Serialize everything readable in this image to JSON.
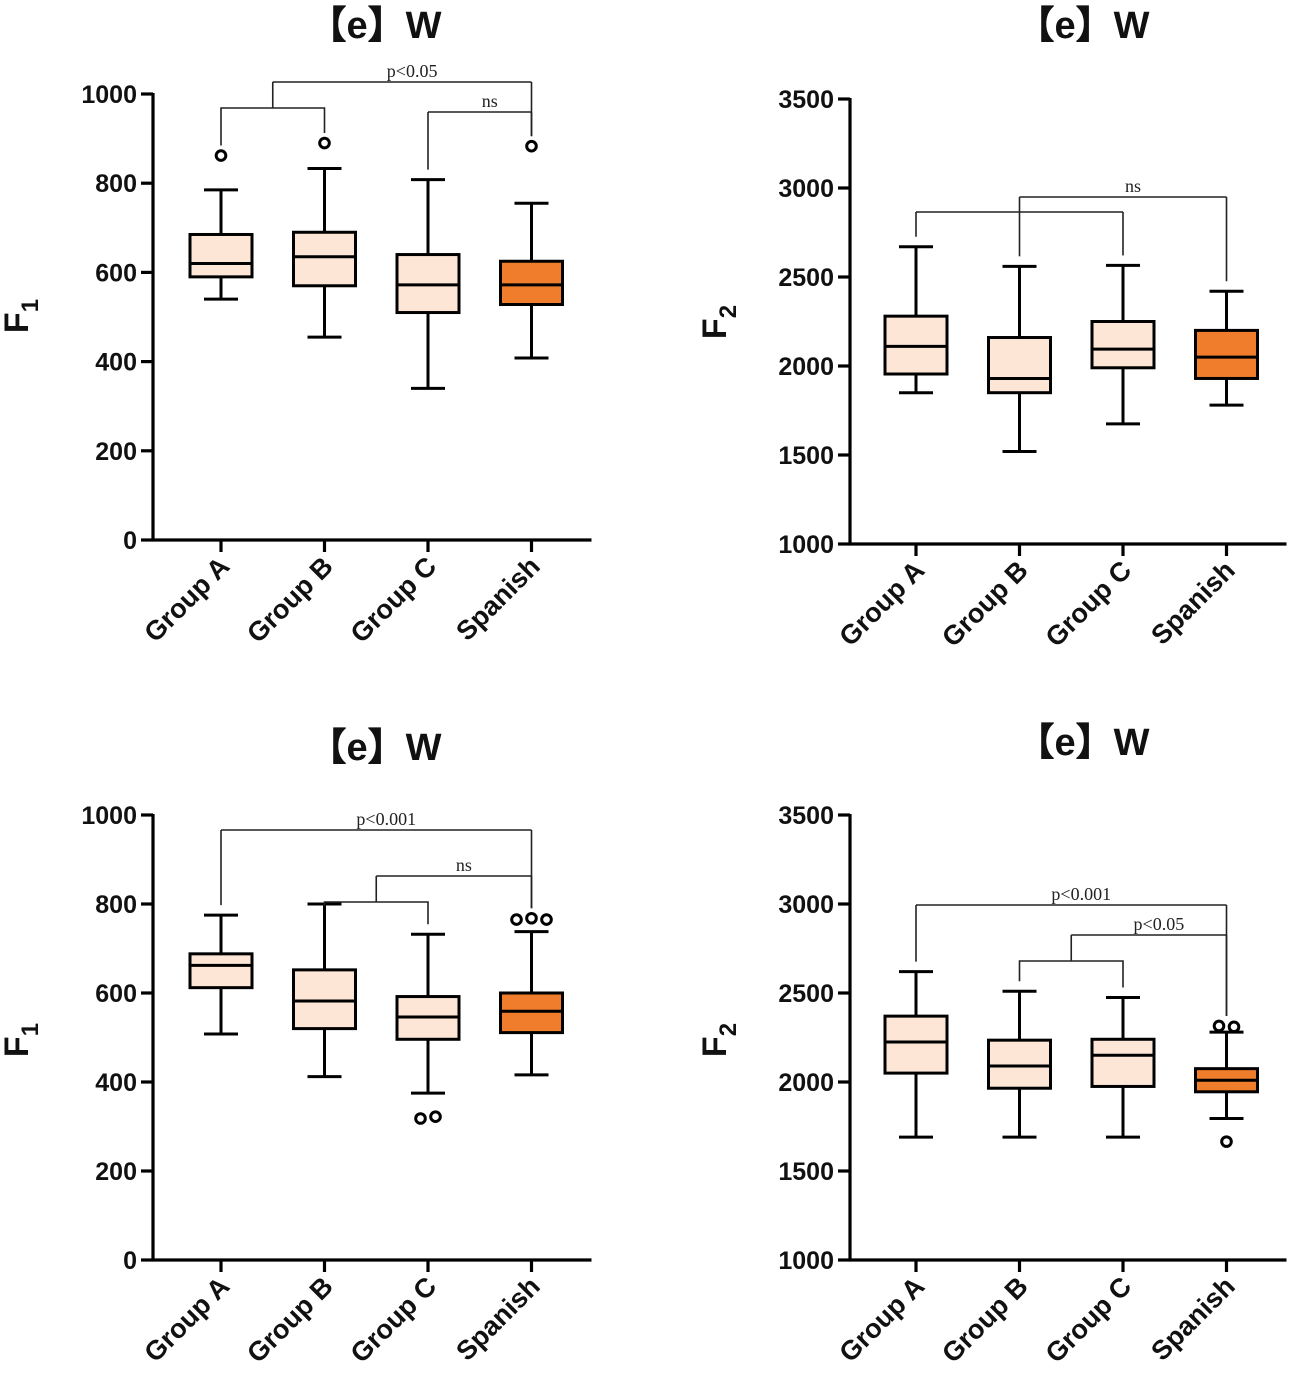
{
  "colors": {
    "light_box": "#fde6d6",
    "dark_box": "#f07d2c",
    "axis": "#000000"
  },
  "chart_data": [
    {
      "type": "box",
      "title": "【e】W",
      "ylabel": "F",
      "ylabel_sub": "1",
      "ylim": [
        0,
        1000
      ],
      "yticks": [
        "0",
        "200",
        "400",
        "600",
        "800",
        "1000"
      ],
      "categories": [
        "Group A",
        "Group B",
        "Group C",
        "Spanish"
      ],
      "boxes": [
        {
          "name": "Group A",
          "min": 540,
          "q1": 590,
          "median": 620,
          "q3": 685,
          "max": 785,
          "outliers": [
            862
          ]
        },
        {
          "name": "Group B",
          "min": 455,
          "q1": 570,
          "median": 635,
          "q3": 690,
          "max": 833,
          "outliers": [
            890
          ]
        },
        {
          "name": "Group C",
          "min": 340,
          "q1": 510,
          "median": 572,
          "q3": 640,
          "max": 808,
          "outliers": []
        },
        {
          "name": "Spanish",
          "min": 408,
          "q1": 528,
          "median": 572,
          "q3": 625,
          "max": 755,
          "outliers": [
            883
          ]
        }
      ],
      "brackets": [
        {
          "label": "p<0.05",
          "kind": "grouped",
          "left": [
            0,
            1
          ],
          "right": 3,
          "level": 0
        },
        {
          "label": "ns",
          "kind": "simple",
          "left": 2,
          "right": 3,
          "level": 1
        }
      ]
    },
    {
      "type": "box",
      "title": "【e】W",
      "ylabel": "F",
      "ylabel_sub": "2",
      "ylim": [
        1000,
        3500
      ],
      "yticks": [
        "1000",
        "1500",
        "2000",
        "2500",
        "3000",
        "3500"
      ],
      "categories": [
        "Group A",
        "Group B",
        "Group C",
        "Spanish"
      ],
      "boxes": [
        {
          "name": "Group A",
          "min": 1850,
          "q1": 1955,
          "median": 2110,
          "q3": 2280,
          "max": 2670,
          "outliers": []
        },
        {
          "name": "Group B",
          "min": 1520,
          "q1": 1850,
          "median": 1930,
          "q3": 2160,
          "max": 2560,
          "outliers": []
        },
        {
          "name": "Group C",
          "min": 1675,
          "q1": 1990,
          "median": 2095,
          "q3": 2250,
          "max": 2565,
          "outliers": []
        },
        {
          "name": "Spanish",
          "min": 1780,
          "q1": 1930,
          "median": 2050,
          "q3": 2200,
          "max": 2420,
          "outliers": []
        }
      ],
      "brackets": [
        {
          "label": "",
          "kind": "simple",
          "left": 0,
          "right": 2,
          "level": 1
        },
        {
          "label": "ns",
          "kind": "simple",
          "left": 1,
          "right": 3,
          "level": 0
        }
      ]
    },
    {
      "type": "box",
      "title": "【e】W",
      "ylabel": "F",
      "ylabel_sub": "1",
      "ylim": [
        0,
        1000
      ],
      "yticks": [
        "0",
        "200",
        "400",
        "600",
        "800",
        "1000"
      ],
      "categories": [
        "Group A",
        "Group B",
        "Group C",
        "Spanish"
      ],
      "boxes": [
        {
          "name": "Group A",
          "min": 508,
          "q1": 612,
          "median": 662,
          "q3": 688,
          "max": 775,
          "outliers": []
        },
        {
          "name": "Group B",
          "min": 412,
          "q1": 520,
          "median": 582,
          "q3": 652,
          "max": 800,
          "outliers": []
        },
        {
          "name": "Group C",
          "min": 375,
          "q1": 496,
          "median": 546,
          "q3": 592,
          "max": 732,
          "outliers": [
            318,
            322
          ]
        },
        {
          "name": "Spanish",
          "min": 416,
          "q1": 511,
          "median": 559,
          "q3": 600,
          "max": 738,
          "outliers": [
            765,
            768,
            765
          ]
        }
      ],
      "brackets": [
        {
          "label": "p<0.001",
          "kind": "simple",
          "left": 0,
          "right": 3,
          "level": 0
        },
        {
          "label": "ns",
          "kind": "grouped",
          "left": [
            1,
            2
          ],
          "right": 3,
          "level": 1
        }
      ]
    },
    {
      "type": "box",
      "title": "【e】W",
      "ylabel": "F",
      "ylabel_sub": "2",
      "ylim": [
        1000,
        3500
      ],
      "yticks": [
        "1000",
        "1500",
        "2000",
        "2500",
        "3000",
        "3500"
      ],
      "categories": [
        "Group A",
        "Group B",
        "Group C",
        "Spanish"
      ],
      "boxes": [
        {
          "name": "Group A",
          "min": 1690,
          "q1": 2050,
          "median": 2225,
          "q3": 2370,
          "max": 2620,
          "outliers": []
        },
        {
          "name": "Group B",
          "min": 1690,
          "q1": 1965,
          "median": 2090,
          "q3": 2235,
          "max": 2510,
          "outliers": []
        },
        {
          "name": "Group C",
          "min": 1690,
          "q1": 1975,
          "median": 2150,
          "q3": 2240,
          "max": 2475,
          "outliers": []
        },
        {
          "name": "Spanish",
          "min": 1795,
          "q1": 1945,
          "median": 2010,
          "q3": 2075,
          "max": 2280,
          "outliers": [
            2315,
            2310,
            1665
          ]
        }
      ],
      "brackets": [
        {
          "label": "p<0.001",
          "kind": "simple",
          "left": 0,
          "right": 3,
          "level": 0
        },
        {
          "label": "p<0.05",
          "kind": "grouped",
          "left": [
            1,
            2
          ],
          "right": 3,
          "level": 1
        }
      ]
    }
  ]
}
